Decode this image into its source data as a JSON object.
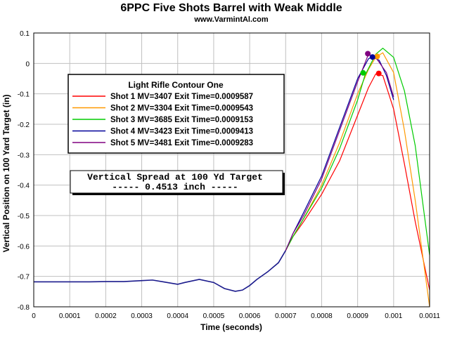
{
  "chart_data": {
    "type": "line",
    "title": "6PPC Five Shots Barrel with Weak Middle",
    "subtitle": "www.VarmintAl.com",
    "xlabel": "Time (seconds)",
    "ylabel": "Vertical Position on 100 Yard Target (in)",
    "xlim": [
      0,
      0.0011
    ],
    "ylim": [
      -0.8,
      0.1
    ],
    "x_ticks": [
      "0",
      "0.0001",
      "0.0002",
      "0.0003",
      "0.0004",
      "0.0005",
      "0.0006",
      "0.0007",
      "0.0008",
      "0.0009",
      "0.001",
      "0.0011"
    ],
    "y_ticks": [
      "0.1",
      "0",
      "-0.1",
      "-0.2",
      "-0.3",
      "-0.4",
      "-0.5",
      "-0.6",
      "-0.7",
      "-0.8"
    ],
    "grid": true,
    "legend": {
      "title": "Light Rifle Contour One",
      "placement": "upper-left"
    },
    "annotation": {
      "line1": "Vertical Spread at 100 Yd Target",
      "line2": "----- 0.4513 inch -----"
    },
    "common_path": {
      "x": [
        0,
        0.0001,
        0.00015,
        0.0002,
        0.00025,
        0.0003,
        0.00033,
        0.00036,
        0.0004,
        0.00042,
        0.00046,
        0.0005,
        0.00053,
        0.00056,
        0.00058,
        0.0006,
        0.00062,
        0.00065,
        0.00068,
        0.0007
      ],
      "y": [
        -0.718,
        -0.718,
        -0.718,
        -0.717,
        -0.717,
        -0.714,
        -0.712,
        -0.718,
        -0.726,
        -0.72,
        -0.71,
        -0.72,
        -0.74,
        -0.749,
        -0.745,
        -0.73,
        -0.71,
        -0.685,
        -0.655,
        -0.615
      ]
    },
    "series": [
      {
        "name": "Shot 1 MV=3407 Exit Time=0.0009587",
        "color": "#ff0000",
        "x": [
          0.00072,
          0.00075,
          0.0008,
          0.00085,
          0.0009,
          0.00093,
          0.00095,
          0.00097,
          0.001,
          0.00103,
          0.00106,
          0.0011
        ],
        "y": [
          -0.57,
          -0.52,
          -0.43,
          -0.32,
          -0.17,
          -0.08,
          -0.035,
          -0.04,
          -0.15,
          -0.33,
          -0.52,
          -0.745
        ],
        "exit_point": {
          "x": 0.0009587,
          "y": -0.033
        }
      },
      {
        "name": "Shot 2 MV=3304 Exit Time=0.0009543",
        "color": "#ff9900",
        "x": [
          0.00072,
          0.00075,
          0.0008,
          0.00085,
          0.0009,
          0.00093,
          0.00095,
          0.00097,
          0.001,
          0.00103,
          0.00106,
          0.0011
        ],
        "y": [
          -0.57,
          -0.51,
          -0.4,
          -0.26,
          -0.1,
          -0.02,
          0.02,
          0.035,
          -0.03,
          -0.22,
          -0.45,
          -0.8
        ],
        "exit_point": {
          "x": 0.0009543,
          "y": 0.023
        }
      },
      {
        "name": "Shot 3 MV=3685 Exit Time=0.0009153",
        "color": "#00cc00",
        "x": [
          0.00072,
          0.00075,
          0.0008,
          0.00085,
          0.0009,
          0.00092,
          0.00095,
          0.00097,
          0.001,
          0.00103,
          0.00106,
          0.0011
        ],
        "y": [
          -0.57,
          -0.51,
          -0.41,
          -0.28,
          -0.12,
          -0.04,
          0.03,
          0.05,
          0.02,
          -0.09,
          -0.27,
          -0.63
        ],
        "exit_point": {
          "x": 0.0009153,
          "y": -0.031
        }
      },
      {
        "name": "Shot 4 MV=3423 Exit Time=0.0009413",
        "color": "#000099",
        "x": [
          0.00072,
          0.00075,
          0.0008,
          0.00085,
          0.0009,
          0.00093,
          0.00094,
          0.00096,
          0.00098,
          0.001
        ],
        "y": [
          -0.56,
          -0.49,
          -0.37,
          -0.21,
          -0.05,
          0.015,
          0.022,
          0.01,
          -0.04,
          -0.12
        ],
        "exit_point": {
          "x": 0.0009413,
          "y": 0.021
        }
      },
      {
        "name": "Shot 5 MV=3481 Exit Time=0.0009283",
        "color": "#800080",
        "x": [
          0.00072,
          0.00075,
          0.0008,
          0.00085,
          0.0009,
          0.00092,
          0.00093,
          0.00095,
          0.00098,
          0.001
        ],
        "y": [
          -0.56,
          -0.5,
          -0.38,
          -0.22,
          -0.06,
          0.0,
          0.03,
          0.02,
          -0.03,
          -0.11
        ],
        "exit_point": {
          "x": 0.0009283,
          "y": 0.032
        }
      }
    ]
  }
}
